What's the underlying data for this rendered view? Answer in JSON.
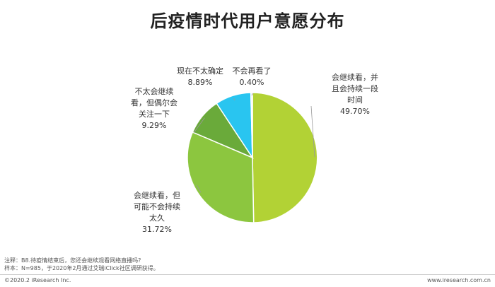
{
  "title": "后疫情时代用户意愿分布",
  "chart_data": {
    "type": "pie",
    "title": "后疫情时代用户意愿分布",
    "slices": [
      {
        "label": "会继续看，并且会持续一段时间",
        "label_lines": [
          "会继续看，并",
          "且会持续一段",
          "时间"
        ],
        "value": 49.7,
        "display": "49.70%",
        "color": "#b2d235"
      },
      {
        "label": "会继续看，但可能不会持续太久",
        "label_lines": [
          "会继续看，但",
          "可能不会持续",
          "太久"
        ],
        "value": 31.72,
        "display": "31.72%",
        "color": "#8cc63f"
      },
      {
        "label": "不太会继续看，但偶尔会关注一下",
        "label_lines": [
          "不太会继续",
          "看，但偶尔会",
          "关注一下"
        ],
        "value": 9.29,
        "display": "9.29%",
        "color": "#6aaa3a"
      },
      {
        "label": "现在不太确定",
        "label_lines": [
          "现在不太确定"
        ],
        "value": 8.89,
        "display": "8.89%",
        "color": "#29c5f0"
      },
      {
        "label": "不会再看了",
        "label_lines": [
          "不会再看了"
        ],
        "value": 0.4,
        "display": "0.40%",
        "color": "#f0f0f0"
      }
    ]
  },
  "notes": {
    "line1": "注释：B8.待疫情结束后，您还会继续观看网络直播吗?",
    "line2": "样本：N=985，于2020年2月通过艾瑞iClick社区调研获得。"
  },
  "footer": {
    "copyright": "©2020.2 iResearch Inc.",
    "website": "www.iresearch.com.cn"
  }
}
